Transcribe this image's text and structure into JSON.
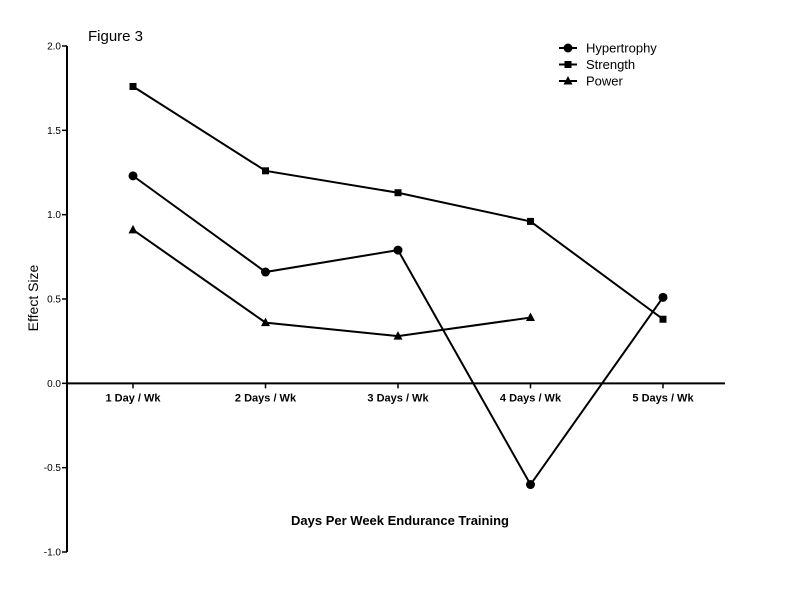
{
  "figure_caption": "Figure 3",
  "chart_data": {
    "type": "line",
    "categories": [
      "1 Day / Wk",
      "2 Days / Wk",
      "3 Days / Wk",
      "4 Days / Wk",
      "5 Days / Wk"
    ],
    "xlabel": "Days Per Week Endurance Training",
    "ylabel": "Effect Size",
    "ylim": [
      -1.0,
      2.0
    ],
    "yticks": [
      "2.0",
      "1.5",
      "1.0",
      "0.5",
      "0.0",
      "-0.5",
      "-1.0"
    ],
    "legend_position": "top-right",
    "grid": false,
    "series": [
      {
        "name": "Hypertrophy",
        "marker": "circle",
        "values": [
          1.23,
          0.66,
          0.79,
          -0.6,
          0.51
        ]
      },
      {
        "name": "Strength",
        "marker": "square",
        "values": [
          1.76,
          1.26,
          1.13,
          0.96,
          0.38
        ]
      },
      {
        "name": "Power",
        "marker": "triangle",
        "values": [
          0.91,
          0.36,
          0.28,
          0.39,
          null
        ]
      }
    ]
  }
}
